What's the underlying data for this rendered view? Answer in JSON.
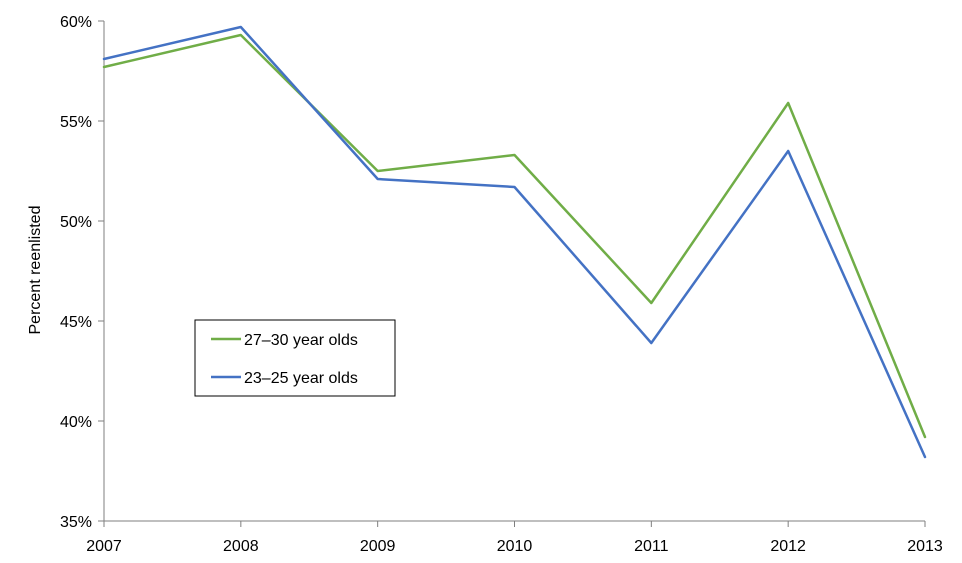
{
  "chart_data": {
    "type": "line",
    "title": "",
    "xlabel": "",
    "ylabel": "Percent reenlisted",
    "x": [
      2007,
      2008,
      2009,
      2010,
      2011,
      2012,
      2013
    ],
    "x_tick_labels": [
      "2007",
      "2008",
      "2009",
      "2010",
      "2011",
      "2012",
      "2013"
    ],
    "ylim": [
      35,
      60
    ],
    "y_ticks": [
      35,
      40,
      45,
      50,
      55,
      60
    ],
    "y_tick_labels": [
      "35%",
      "40%",
      "45%",
      "50%",
      "55%",
      "60%"
    ],
    "grid": false,
    "legend_position": "center-left",
    "series": [
      {
        "name": "27–30 year olds",
        "color": "#70ad47",
        "values": [
          57.7,
          59.3,
          52.5,
          53.3,
          45.9,
          55.9,
          39.2
        ]
      },
      {
        "name": "23–25 year olds",
        "color": "#4472c4",
        "values": [
          58.1,
          59.7,
          52.1,
          51.7,
          43.9,
          53.5,
          38.2
        ]
      }
    ]
  }
}
